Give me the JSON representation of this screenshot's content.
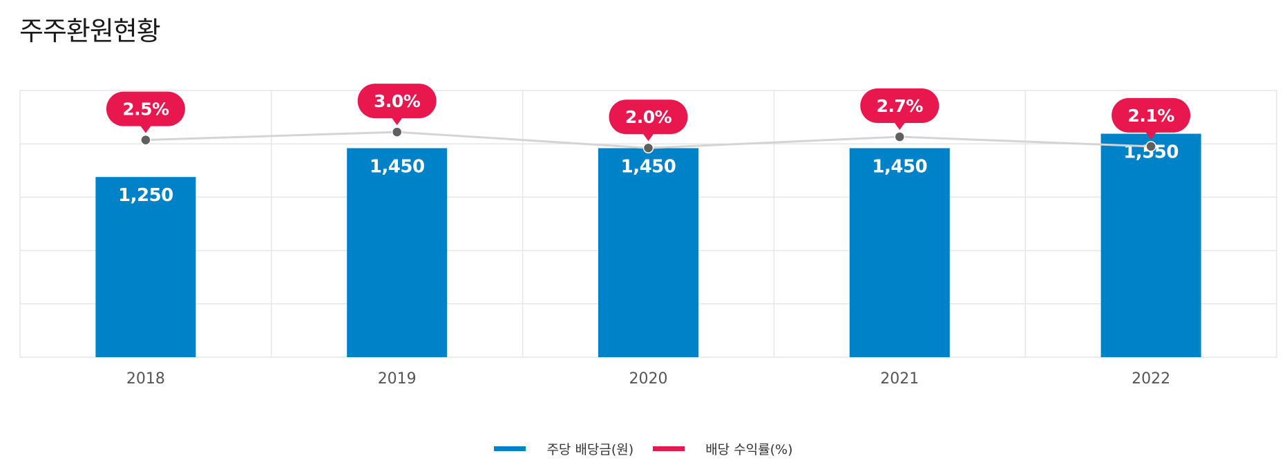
{
  "title": "주주환원현황",
  "colors": {
    "bar": "#0082c8",
    "callout": "#e8174e",
    "line": "#d4d4d4",
    "point": "#5f5f5f",
    "grid": "#e6e6e6",
    "axis_text": "#555555"
  },
  "chart_data": {
    "type": "bar",
    "title": "주주환원현황",
    "categories": [
      "2018",
      "2019",
      "2020",
      "2021",
      "2022"
    ],
    "series": [
      {
        "name": "주당 배당금(원)",
        "type": "bar",
        "values": [
          1250,
          1450,
          1450,
          1450,
          1550
        ],
        "labels": [
          "1,250",
          "1,450",
          "1,450",
          "1,450",
          "1,550"
        ]
      },
      {
        "name": "배당 수익률(%)",
        "type": "line",
        "values": [
          2.5,
          3.0,
          2.0,
          2.7,
          2.1
        ],
        "labels": [
          "2.5%",
          "3.0%",
          "2.0%",
          "2.7%",
          "2.1%"
        ]
      }
    ],
    "grid": true,
    "legend_position": "bottom-center"
  },
  "legend": [
    {
      "label": "주당 배당금(원)",
      "color": "#0082c8"
    },
    {
      "label": "배당 수익률(%)",
      "color": "#e8174e"
    }
  ]
}
